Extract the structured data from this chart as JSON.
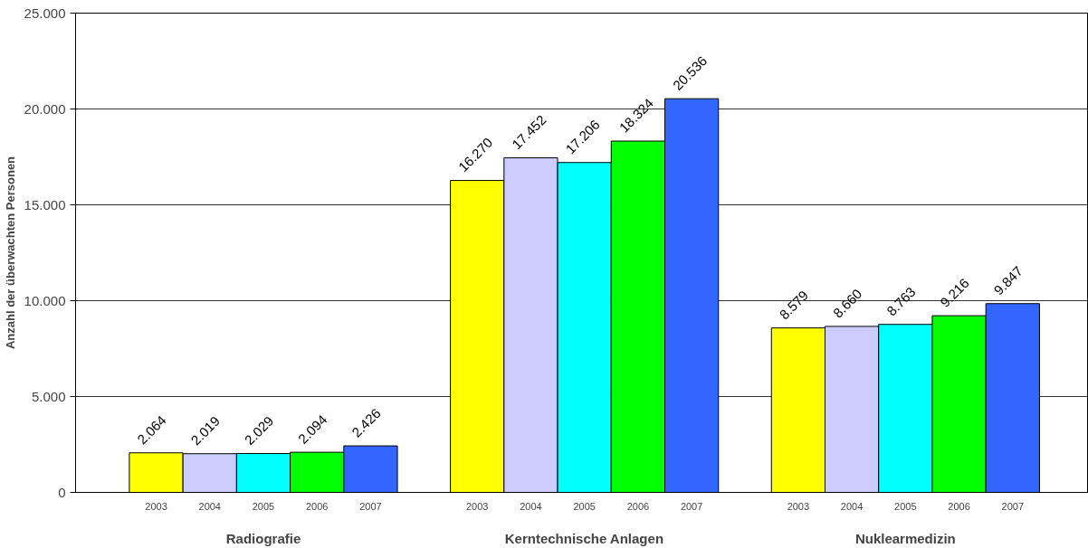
{
  "chart_data": {
    "type": "bar",
    "ylabel": "Anzahl der überwachten Personen",
    "categories": [
      "Radiografie",
      "Kerntechnische Anlagen",
      "Nuklearmedizin"
    ],
    "series": [
      {
        "name": "2003",
        "color": "#ffff00",
        "values": [
          2064,
          16270,
          8579
        ],
        "value_labels": [
          "2.064",
          "16.270",
          "8.579"
        ]
      },
      {
        "name": "2004",
        "color": "#ccccff",
        "values": [
          2019,
          17452,
          8660
        ],
        "value_labels": [
          "2.019",
          "17.452",
          "8.660"
        ]
      },
      {
        "name": "2005",
        "color": "#00ffff",
        "values": [
          2029,
          17206,
          8763
        ],
        "value_labels": [
          "2.029",
          "17.206",
          "8.763"
        ]
      },
      {
        "name": "2006",
        "color": "#00ff00",
        "values": [
          2094,
          18324,
          9216
        ],
        "value_labels": [
          "2.094",
          "18.324",
          "9.216"
        ]
      },
      {
        "name": "2007",
        "color": "#3366ff",
        "values": [
          2426,
          20536,
          9847
        ],
        "value_labels": [
          "2.426",
          "20.536",
          "9.847"
        ]
      }
    ],
    "ylim": [
      0,
      25000
    ],
    "yticks": [
      0,
      {
        "value": 5000,
        "label": "5.000"
      },
      {
        "value": 10000,
        "label": "10.000"
      },
      {
        "value": 15000,
        "label": "15.000"
      },
      {
        "value": 20000,
        "label": "20.000"
      },
      {
        "value": 25000,
        "label": "25.000"
      }
    ],
    "grid": "y"
  }
}
